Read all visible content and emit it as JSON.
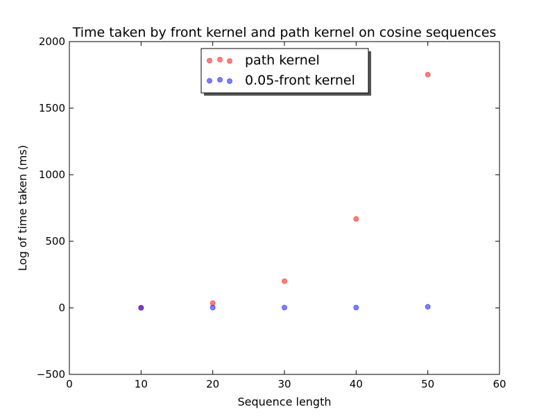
{
  "chart_data": {
    "type": "scatter",
    "title": "Time taken by front kernel and path kernel on cosine sequences",
    "xlabel": "Sequence length",
    "ylabel": "Log of time taken (ms)",
    "xlim": [
      0,
      60
    ],
    "ylim": [
      -500,
      2000
    ],
    "xticks": [
      0,
      10,
      20,
      30,
      40,
      50,
      60
    ],
    "yticks": [
      -500,
      0,
      500,
      1000,
      1500,
      2000
    ],
    "xtick_labels": [
      "0",
      "10",
      "20",
      "30",
      "40",
      "50",
      "60"
    ],
    "ytick_labels": [
      "−500",
      "0",
      "500",
      "1000",
      "1500",
      "2000"
    ],
    "grid": false,
    "legend_position": "top-center",
    "series": [
      {
        "name": "path kernel",
        "color": "#ff0000",
        "opacity": 0.5,
        "x": [
          10,
          20,
          30,
          40,
          50
        ],
        "y": [
          1,
          35,
          200,
          668,
          1752
        ]
      },
      {
        "name": "0.05-front kernel",
        "color": "#0000ff",
        "opacity": 0.5,
        "x": [
          10,
          20,
          30,
          40,
          50
        ],
        "y": [
          0,
          2,
          2,
          2,
          8
        ]
      }
    ]
  }
}
